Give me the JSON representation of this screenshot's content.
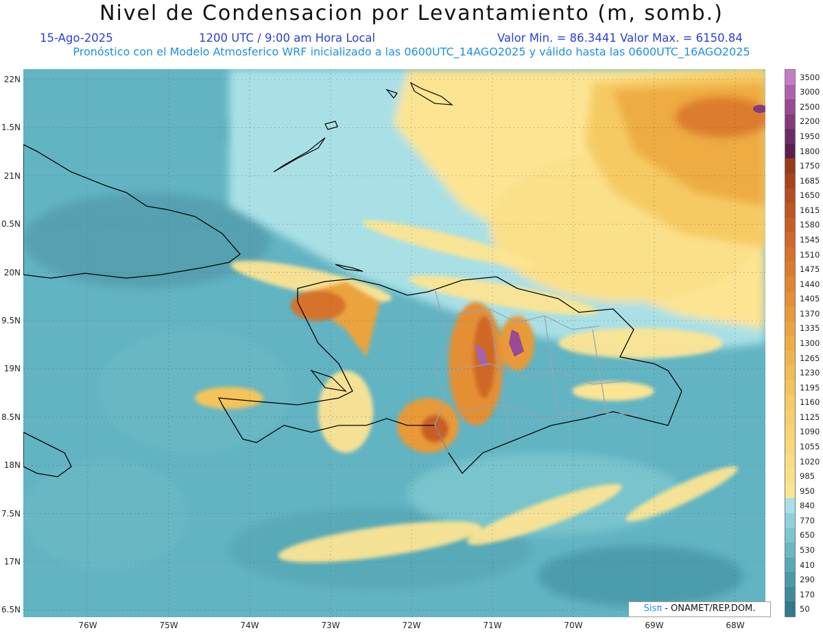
{
  "header": {
    "title": "Nivel de Condensacion por Levantamiento (m, somb.)",
    "date": "15-Ago-2025",
    "time": "1200 UTC / 9:00 am Hora Local",
    "minmax": "Valor Min. = 86.3441  Valor Max. = 6150.84",
    "forecast": "Pronóstico con el Modelo Atmosferico WRF inicializado a las 0600UTC_14AGO2025 y válido hasta las  0600UTC_16AGO2025"
  },
  "axes": {
    "lat_labels": [
      "22N",
      "1.5N",
      "21N",
      "0.5N",
      "20N",
      "9.5N",
      "19N",
      "8.5N",
      "18N",
      "7.5N",
      "17N",
      "6.5N"
    ],
    "lon_labels": [
      "76W",
      "75W",
      "74W",
      "73W",
      "72W",
      "71W",
      "70W",
      "69W",
      "68W"
    ],
    "lat_range": [
      16.4,
      22.1
    ],
    "lon_range": [
      -76.6,
      -67.6
    ]
  },
  "colorbar": {
    "levels": [
      "3500",
      "3000",
      "2500",
      "2200",
      "1950",
      "1800",
      "1750",
      "1685",
      "1650",
      "1615",
      "1580",
      "1545",
      "1510",
      "1475",
      "1440",
      "1405",
      "1370",
      "1335",
      "1300",
      "1265",
      "1230",
      "1195",
      "1160",
      "1125",
      "1090",
      "1055",
      "1020",
      "985",
      "950",
      "840",
      "770",
      "650",
      "530",
      "410",
      "290",
      "170",
      "50"
    ],
    "colors": [
      "#c87cc4",
      "#b061ae",
      "#9a4996",
      "#853a7e",
      "#6e2c66",
      "#5a1f4d",
      "#9a3a1c",
      "#a8431e",
      "#b54d21",
      "#bf5623",
      "#c75f25",
      "#cf6828",
      "#d6722b",
      "#dc7b2e",
      "#e18531",
      "#e58f35",
      "#e89939",
      "#eba33e",
      "#eeac43",
      "#f0b54a",
      "#f2bd52",
      "#f4c45a",
      "#f5ca62",
      "#f7cf6a",
      "#f8d472",
      "#f9d87a",
      "#fadc82",
      "#fbe08a",
      "#fce493",
      "#a9e0e5",
      "#8fd3da",
      "#7cc6cf",
      "#69b8c4",
      "#58a9b7",
      "#4a9aaa",
      "#3e8b9c",
      "#2f7a8c"
    ]
  },
  "credit": {
    "sis": "Sisπ",
    "text": " - ONAMET/REP.DOM."
  }
}
